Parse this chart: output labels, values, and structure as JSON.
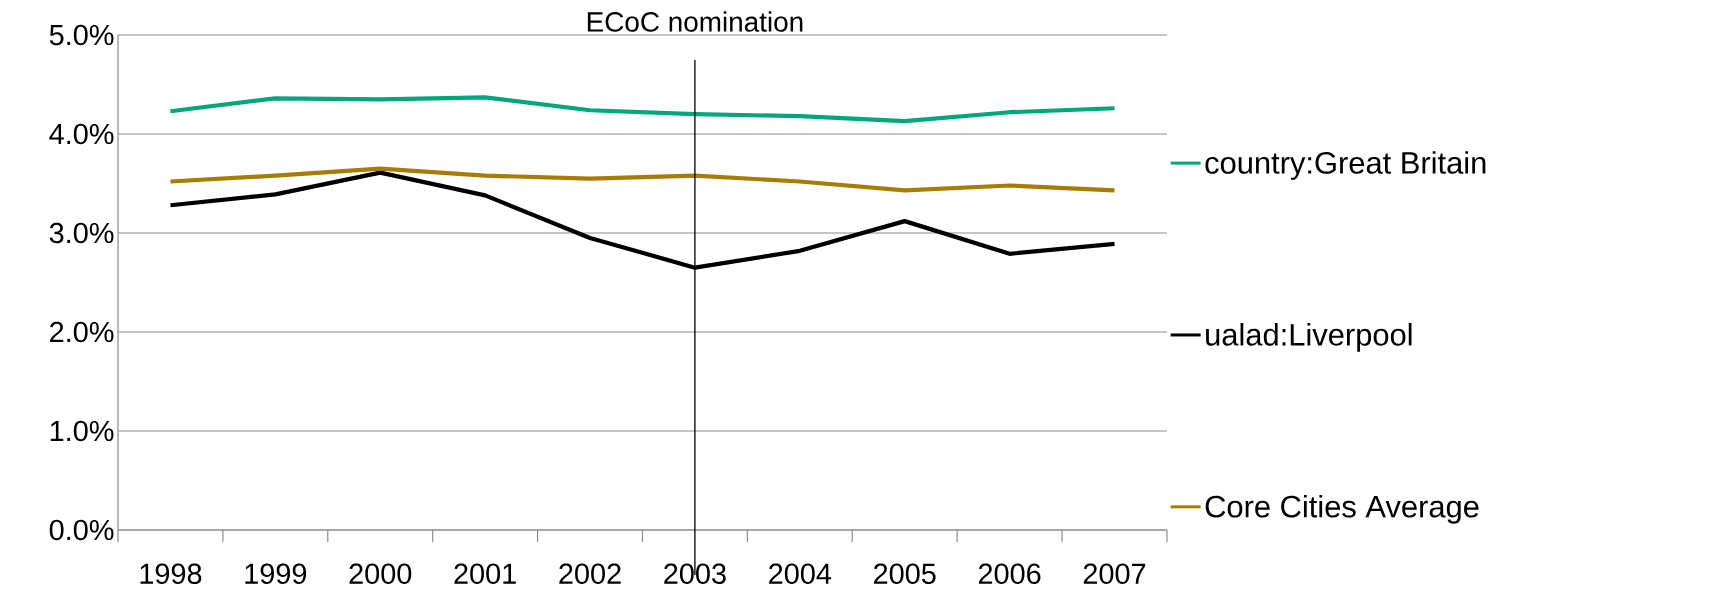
{
  "chart_data": {
    "type": "line",
    "categories": [
      "1998",
      "1999",
      "2000",
      "2001",
      "2002",
      "2003",
      "2004",
      "2005",
      "2006",
      "2007"
    ],
    "series": [
      {
        "name": "country:Great Britain",
        "color": "#00a77c",
        "values": [
          4.23,
          4.36,
          4.35,
          4.37,
          4.24,
          4.2,
          4.18,
          4.13,
          4.22,
          4.26
        ]
      },
      {
        "name": "ualad:Liverpool",
        "color": "#000000",
        "values": [
          3.28,
          3.39,
          3.61,
          3.38,
          2.95,
          2.65,
          2.82,
          3.12,
          2.79,
          2.89
        ]
      },
      {
        "name": "Core Cities Average",
        "color": "#a87c00",
        "values": [
          3.52,
          3.58,
          3.65,
          3.58,
          3.55,
          3.58,
          3.52,
          3.43,
          3.48,
          3.43
        ]
      }
    ],
    "ylim": [
      0,
      5
    ],
    "yticks": [
      {
        "value": 0,
        "label": "0.0%"
      },
      {
        "value": 1,
        "label": "1.0%"
      },
      {
        "value": 2,
        "label": "2.0%"
      },
      {
        "value": 3,
        "label": "3.0%"
      },
      {
        "value": 4,
        "label": "4.0%"
      },
      {
        "value": 5,
        "label": "5.0%"
      }
    ],
    "ref_lines": [
      {
        "axis": "x",
        "value": "2003",
        "label": "ECoC  nomination",
        "color": "#000000"
      }
    ],
    "grid": "y",
    "legend": "right",
    "marker": "none",
    "line_style": "solid"
  }
}
